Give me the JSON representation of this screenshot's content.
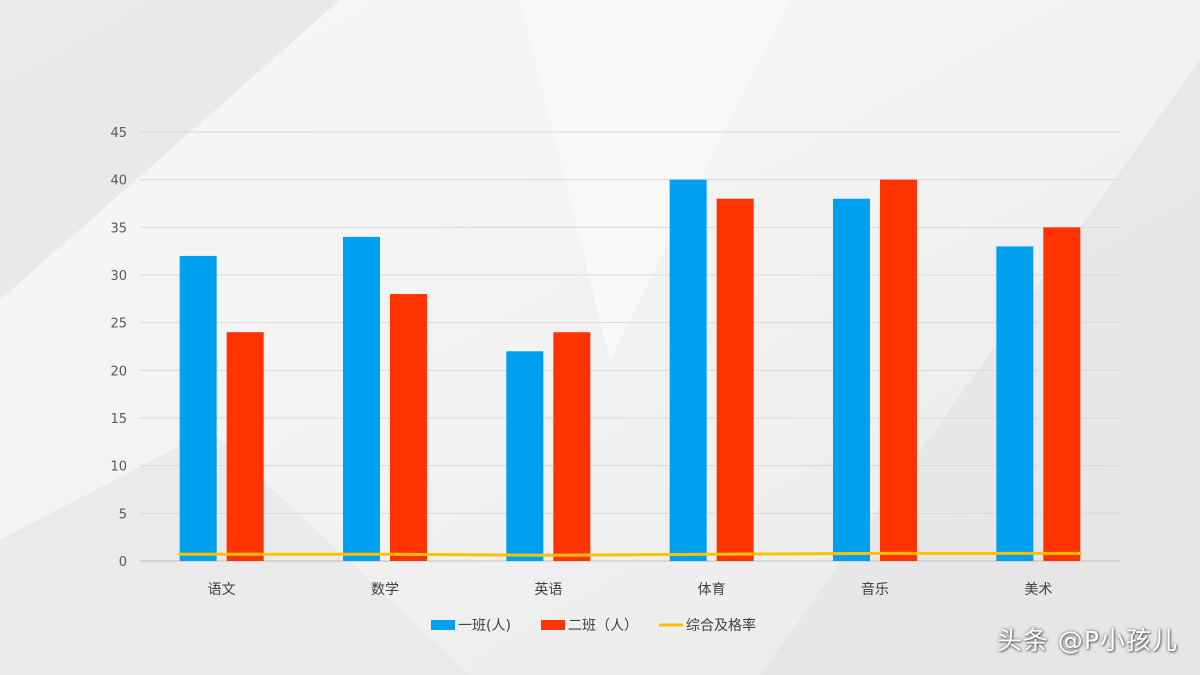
{
  "chart_data": {
    "type": "bar",
    "categories": [
      "语文",
      "数学",
      "英语",
      "体育",
      "音乐",
      "美术"
    ],
    "series": [
      {
        "name": "一班(人)",
        "type": "bar",
        "color": "#00a0f0",
        "values": [
          32,
          34,
          22,
          40,
          38,
          33
        ]
      },
      {
        "name": "二班（人）",
        "type": "bar",
        "color": "#ff3300",
        "values": [
          24,
          28,
          24,
          38,
          40,
          35
        ]
      },
      {
        "name": "综合及格率",
        "type": "line",
        "color": "#ffc000",
        "values": [
          0.7,
          0.7,
          0.6,
          0.7,
          0.8,
          0.8
        ]
      }
    ],
    "ylim": [
      0,
      45
    ],
    "yticks": [
      0,
      5,
      10,
      15,
      20,
      25,
      30,
      35,
      40,
      45
    ],
    "grid": true,
    "legend_position": "bottom"
  },
  "watermark": "头条 @P小孩儿"
}
